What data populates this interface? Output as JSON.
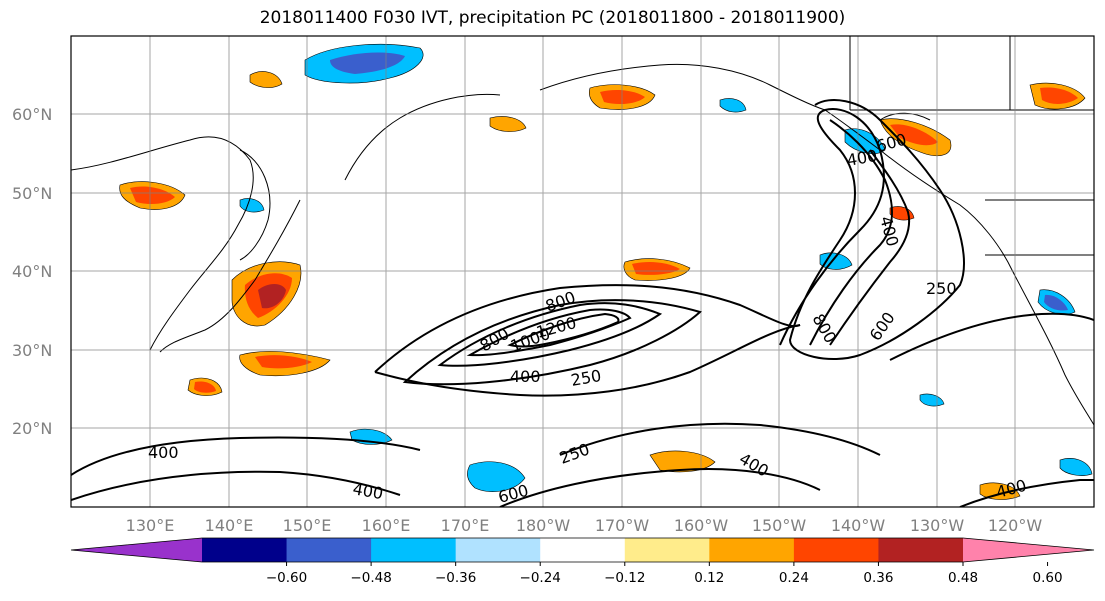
{
  "title": "2018011400 F030 IVT, precipitation PC (2018011800 - 2018011900)",
  "map": {
    "lat_labels": [
      "60°N",
      "50°N",
      "40°N",
      "30°N",
      "20°N"
    ],
    "lon_labels": [
      "130°E",
      "140°E",
      "150°E",
      "160°E",
      "170°E",
      "180°W",
      "170°W",
      "160°W",
      "150°W",
      "140°W",
      "130°W",
      "120°W"
    ],
    "contour_labels": [
      "800",
      "1000",
      "800",
      "1200",
      "400",
      "250",
      "400",
      "600",
      "400",
      "800",
      "600",
      "250",
      "400",
      "400",
      "250",
      "400",
      "600",
      "400"
    ]
  },
  "colorbar": {
    "colors": [
      "#9932cc",
      "#00008b",
      "#3a5fcd",
      "#00bfff",
      "#b0e2ff",
      "#ffffff",
      "#ffec8b",
      "#ffa500",
      "#ff4500",
      "#b22222",
      "#ff82ab"
    ],
    "tick_labels": [
      "−0.60",
      "−0.48",
      "−0.36",
      "−0.24",
      "−0.12",
      "0.12",
      "0.24",
      "0.36",
      "0.48",
      "0.60"
    ]
  }
}
